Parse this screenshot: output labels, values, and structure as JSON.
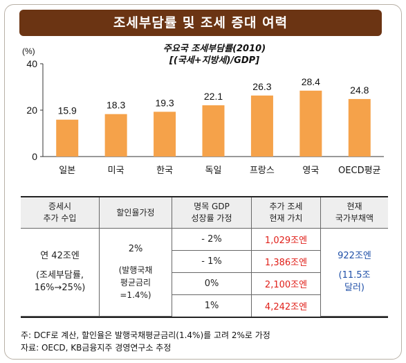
{
  "header": {
    "title": "조세부담률 및 조세 증대 여력"
  },
  "chart_data": {
    "type": "bar",
    "title_line1": "주요국 조세부담률(2010)",
    "title_line2": "[(국세+지방세)/GDP]",
    "ylabel": "(%)",
    "categories": [
      "일본",
      "미국",
      "한국",
      "독일",
      "프랑스",
      "영국",
      "OECD평균"
    ],
    "values": [
      15.9,
      18.3,
      19.3,
      22.1,
      26.3,
      28.4,
      24.8
    ],
    "value_labels": [
      "15.9",
      "18.3",
      "19.3",
      "22.1",
      "26.3",
      "28.4",
      "24.8"
    ],
    "yticks": [
      "0",
      "20",
      "40"
    ],
    "ylim": [
      0,
      40
    ],
    "bar_color": "#f5a24a"
  },
  "table": {
    "headers": [
      [
        "증세시",
        "추가 수입"
      ],
      [
        "할인율가정"
      ],
      [
        "명목 GDP",
        "성장률 가정"
      ],
      [
        "추가 조세",
        "현재 가치"
      ],
      [
        "현재",
        "국가부채액"
      ]
    ],
    "col1": [
      "연 42조엔",
      "(조세부담률,",
      "16%→25%)"
    ],
    "col2_main": "2%",
    "col2_sub": [
      "(발행국채",
      "평균금리",
      "=1.4%)"
    ],
    "growth": [
      "- 2%",
      "- 1%",
      "0%",
      "1%"
    ],
    "present_value": [
      "1,029조엔",
      "1,386조엔",
      "2,100조엔",
      "4,242조엔"
    ],
    "debt": [
      "922조엔",
      "(11.5조",
      "달러)"
    ]
  },
  "notes": {
    "line1": "주: DCF로 계산, 할인율은 발행국채평균금리(1.4%)를 고려 2%로 가정",
    "line2": "자료: OECD, KB금융지주 경영연구소 추정"
  }
}
